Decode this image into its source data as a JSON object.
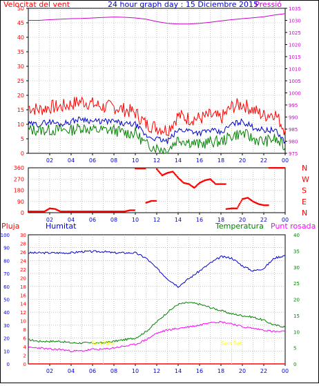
{
  "title": "24 hour graph day : 15 Diciembre 2015",
  "colors": {
    "wind": "#ff0000",
    "wind_avg": "#0000cc",
    "wind_dir": "#ff0000",
    "pressure": "#cc00cc",
    "humidity": "#0000cc",
    "temperature": "#008000",
    "dewpoint": "#ff00ff",
    "rain": "#ff0000",
    "sun": "#ffff00"
  },
  "chart_data": [
    {
      "type": "line",
      "left_label": "Velocitat del vent",
      "right_label": "Pressió",
      "left_ticks": [
        "0",
        "5",
        "10",
        "15",
        "20",
        "25",
        "30",
        "35",
        "40",
        "45",
        "50"
      ],
      "right_ticks": [
        "975",
        "980",
        "985",
        "990",
        "995",
        "1000",
        "1005",
        "1010",
        "1015",
        "1020",
        "1025",
        "1030",
        "1035"
      ],
      "ylim_left": [
        0,
        50
      ],
      "ylim_right": [
        975,
        1035
      ],
      "series": [
        {
          "id": "pressure",
          "axis": "right",
          "x": [
            0,
            1,
            2,
            3,
            4,
            5,
            6,
            7,
            8,
            9,
            10,
            11,
            12,
            13,
            14,
            15,
            16,
            17,
            18,
            19,
            20,
            21,
            22,
            23,
            24
          ],
          "values": [
            1030,
            1030,
            1030.3,
            1030.5,
            1030.7,
            1030.8,
            1031,
            1031.2,
            1031.4,
            1031.3,
            1031,
            1030.5,
            1029.5,
            1028.8,
            1028.5,
            1028.5,
            1028.8,
            1029.2,
            1029.8,
            1030.3,
            1030.7,
            1031.1,
            1031.5,
            1032.2,
            1032.8
          ]
        },
        {
          "id": "gust",
          "axis": "left",
          "x": [
            0,
            1,
            2,
            3,
            4,
            5,
            6,
            7,
            8,
            9,
            10,
            11,
            12,
            13,
            14,
            15,
            16,
            17,
            18,
            19,
            20,
            21,
            22,
            23,
            24
          ],
          "values": [
            16,
            15,
            16,
            16,
            17,
            18,
            17,
            16,
            16,
            15,
            14,
            10,
            9,
            8,
            13,
            12,
            12,
            13,
            12,
            16,
            17,
            15,
            13,
            14,
            8
          ]
        },
        {
          "id": "wind_avg",
          "axis": "left",
          "x": [
            0,
            1,
            2,
            3,
            4,
            5,
            6,
            7,
            8,
            9,
            10,
            11,
            12,
            13,
            14,
            15,
            16,
            17,
            18,
            19,
            20,
            21,
            22,
            23,
            24
          ],
          "values": [
            10,
            10,
            11,
            10,
            11,
            12,
            11,
            11,
            11,
            10,
            10,
            6,
            5,
            4,
            8,
            8,
            7,
            8,
            7,
            10,
            11,
            9,
            8,
            8,
            4
          ]
        },
        {
          "id": "wind_min",
          "axis": "left",
          "x": [
            0,
            1,
            2,
            3,
            4,
            5,
            6,
            7,
            8,
            9,
            10,
            11,
            12,
            13,
            14,
            15,
            16,
            17,
            18,
            19,
            20,
            21,
            22,
            23,
            24
          ],
          "values": [
            8,
            8,
            8,
            8,
            8,
            9,
            8,
            8,
            8,
            7,
            7,
            3,
            2,
            1,
            5,
            4,
            3,
            4,
            4,
            6,
            7,
            5,
            4,
            5,
            2
          ]
        }
      ]
    },
    {
      "type": "scatter",
      "left_ticks": [
        "0",
        "90",
        "180",
        "270",
        "360"
      ],
      "right_ticks": [
        "N",
        "W",
        "S",
        "E",
        "N"
      ],
      "ylim": [
        0,
        360
      ],
      "series": [
        {
          "id": "wind_dir",
          "x": [
            0,
            0.5,
            1,
            1.5,
            2,
            2.5,
            3,
            3.5,
            4,
            4.5,
            5,
            5.5,
            6,
            6.5,
            7,
            7.5,
            8,
            8.5,
            9,
            9.5,
            10,
            10.5,
            11,
            11.5,
            12,
            12.5,
            13,
            13.5,
            14,
            14.5,
            15,
            15.5,
            16,
            16.5,
            17,
            17.5,
            18,
            18.5,
            19,
            19.5,
            20,
            20.5,
            21,
            21.5,
            22,
            22.5,
            23,
            23.5,
            24
          ],
          "values": [
            10,
            10,
            10,
            10,
            35,
            30,
            10,
            10,
            10,
            10,
            10,
            10,
            10,
            10,
            10,
            10,
            10,
            10,
            10,
            20,
            355,
            355,
            80,
            95,
            350,
            300,
            320,
            330,
            280,
            240,
            230,
            200,
            240,
            260,
            270,
            230,
            230,
            30,
            35,
            35,
            110,
            120,
            90,
            70,
            60,
            360,
            360,
            360,
            360
          ]
        }
      ]
    },
    {
      "type": "line",
      "labels": [
        "Pluja",
        "Humitat",
        "Temperatura",
        "Punt rosada"
      ],
      "humidity_ticks": [
        "0",
        "10",
        "20",
        "30",
        "40",
        "50",
        "60",
        "70",
        "80",
        "90",
        "100"
      ],
      "rain_ticks": [
        "0",
        "2",
        "4",
        "6",
        "8",
        "10",
        "12",
        "14",
        "16",
        "18",
        "20",
        "22",
        "24",
        "26",
        "28",
        "30"
      ],
      "temp_ticks": [
        "0",
        "5",
        "10",
        "15",
        "20",
        "25",
        "30",
        "35",
        "40"
      ],
      "x_ticks": [
        "02",
        "04",
        "06",
        "08",
        "10",
        "12",
        "14",
        "16",
        "18",
        "20",
        "22",
        "00"
      ],
      "sun_rise": "Sun Rise",
      "sun_set": "Sun Set",
      "sun_rise_hour": 7,
      "sun_set_hour": 19,
      "series": [
        {
          "id": "humidity",
          "axis": "humidity",
          "x": [
            0,
            1,
            2,
            3,
            4,
            5,
            6,
            7,
            8,
            9,
            10,
            11,
            12,
            13,
            14,
            15,
            16,
            17,
            18,
            19,
            20,
            21,
            22,
            23,
            24
          ],
          "values": [
            86,
            86,
            86,
            86,
            86,
            87,
            87,
            87,
            86,
            86,
            86,
            82,
            74,
            66,
            60,
            66,
            72,
            78,
            83,
            82,
            76,
            72,
            74,
            82,
            84
          ]
        },
        {
          "id": "temperature",
          "axis": "temp",
          "x": [
            0,
            1,
            2,
            3,
            4,
            5,
            6,
            7,
            8,
            9,
            10,
            11,
            12,
            13,
            14,
            15,
            16,
            17,
            18,
            19,
            20,
            21,
            22,
            23,
            24
          ],
          "values": [
            7.5,
            7,
            7,
            7,
            6.5,
            6.5,
            6.5,
            6.5,
            7,
            7.5,
            8,
            10,
            13,
            16,
            18.5,
            19,
            18.5,
            17.5,
            16.5,
            15.5,
            15,
            14.5,
            13.5,
            12,
            11.5
          ]
        },
        {
          "id": "dewpoint",
          "axis": "temp",
          "x": [
            0,
            1,
            2,
            3,
            4,
            5,
            6,
            7,
            8,
            9,
            10,
            11,
            12,
            13,
            14,
            15,
            16,
            17,
            18,
            19,
            20,
            21,
            22,
            23,
            24
          ],
          "values": [
            5,
            5,
            4.5,
            4.5,
            4,
            4,
            4.5,
            4.5,
            5,
            5.5,
            6,
            7.5,
            9.5,
            10.5,
            11,
            11.5,
            12,
            13,
            13,
            12.5,
            11.5,
            11,
            10.5,
            10,
            10
          ]
        },
        {
          "id": "rain",
          "axis": "rain",
          "x": [
            0,
            24
          ],
          "values": [
            0,
            0
          ]
        }
      ]
    }
  ]
}
